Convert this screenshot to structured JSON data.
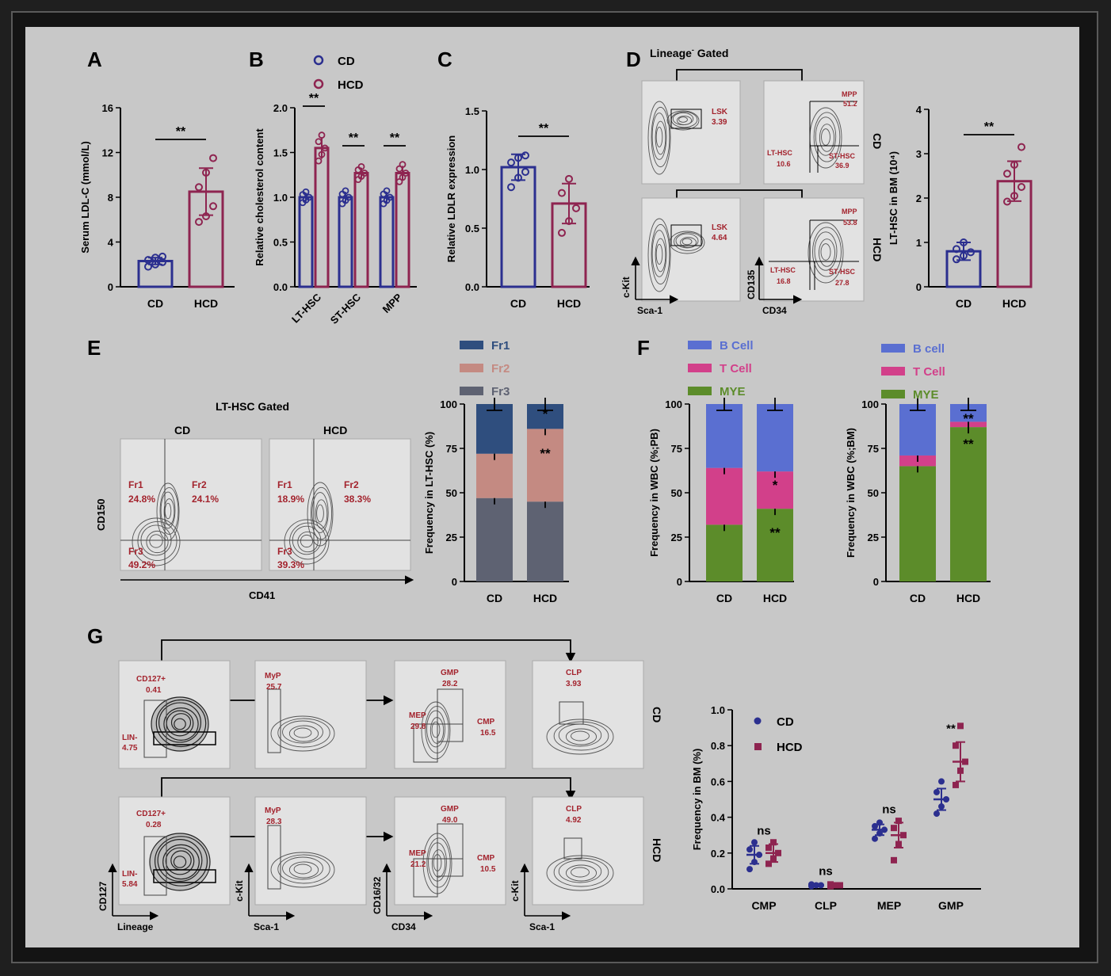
{
  "panels": {
    "A": "A",
    "B": "B",
    "C": "C",
    "D": "D",
    "E": "E",
    "F": "F",
    "G": "G"
  },
  "colors": {
    "cd": "#2b2f8f",
    "hcd": "#8e2450",
    "fr1": "#2f4e7e",
    "fr2": "#c48a82",
    "fr3": "#5e6272",
    "mye": "#5c8c2a",
    "tcell": "#d2408a",
    "bcell": "#5a6fd1",
    "gate": "#a3232d"
  },
  "chart_data": [
    {
      "id": "A",
      "type": "bar",
      "categories": [
        "CD",
        "HCD"
      ],
      "values": [
        2.3,
        8.5
      ],
      "errors": [
        0.3,
        2.1
      ],
      "points": [
        [
          1.8,
          2.0,
          2.2,
          2.4,
          2.6,
          2.7
        ],
        [
          5.8,
          6.3,
          7.2,
          8.9,
          10.2,
          11.5
        ]
      ],
      "ylabel": "Serum LDL-C (mmol/L)",
      "ylim": [
        0,
        16
      ],
      "yticks": [
        "0",
        "4",
        "8",
        "12",
        "16"
      ],
      "sig": "**"
    },
    {
      "id": "B",
      "type": "bar",
      "categories": [
        "LT-HSC",
        "ST-HSC",
        "MPP"
      ],
      "series": [
        {
          "name": "CD",
          "values": [
            1.0,
            1.0,
            1.0
          ],
          "errors": [
            0.05,
            0.06,
            0.06
          ]
        },
        {
          "name": "HCD",
          "values": [
            1.55,
            1.27,
            1.27
          ],
          "errors": [
            0.12,
            0.06,
            0.08
          ]
        }
      ],
      "ylabel": "Relative cholesterol content",
      "ylim": [
        0,
        2.0
      ],
      "yticks": [
        "0.0",
        "0.5",
        "1.0",
        "1.5",
        "2.0"
      ],
      "sig": [
        "**",
        "**",
        "**"
      ]
    },
    {
      "id": "C",
      "type": "bar",
      "categories": [
        "CD",
        "HCD"
      ],
      "values": [
        1.02,
        0.71
      ],
      "errors": [
        0.11,
        0.17
      ],
      "points": [
        [
          0.85,
          0.93,
          0.98,
          1.06,
          1.1,
          1.12
        ],
        [
          0.46,
          0.56,
          0.67,
          0.8,
          0.92
        ]
      ],
      "ylabel": "Relative LDLR expression",
      "ylim": [
        0,
        1.5
      ],
      "yticks": [
        "0.0",
        "0.5",
        "1.0",
        "1.5"
      ],
      "sig": "**"
    },
    {
      "id": "D",
      "type": "bar",
      "categories": [
        "CD",
        "HCD"
      ],
      "values": [
        0.8,
        2.38
      ],
      "errors": [
        0.2,
        0.45
      ],
      "points": [
        [
          0.62,
          0.7,
          0.78,
          0.85,
          1.0
        ],
        [
          1.92,
          2.05,
          2.25,
          2.55,
          2.75,
          3.15
        ]
      ],
      "ylabel": "LT-HSC in BM (10⁴)",
      "ylim": [
        0,
        4
      ],
      "yticks": [
        "0",
        "1",
        "2",
        "3",
        "4"
      ],
      "sig": "**"
    },
    {
      "id": "E",
      "type": "stacked_bar",
      "categories": [
        "CD",
        "HCD"
      ],
      "series": [
        {
          "name": "Fr3",
          "values": [
            47,
            45
          ]
        },
        {
          "name": "Fr2",
          "values": [
            25,
            41
          ]
        },
        {
          "name": "Fr1",
          "values": [
            28,
            14
          ]
        }
      ],
      "ylabel": "Frequency in LT-HSC (%)",
      "ylim": [
        0,
        100
      ],
      "yticks": [
        "0",
        "25",
        "50",
        "75",
        "100"
      ],
      "annotations": [
        "*",
        "**"
      ]
    },
    {
      "id": "F1",
      "type": "stacked_bar",
      "categories": [
        "CD",
        "HCD"
      ],
      "series": [
        {
          "name": "MYE",
          "values": [
            32,
            41
          ]
        },
        {
          "name": "T Cell",
          "values": [
            32,
            21
          ]
        },
        {
          "name": "B Cell",
          "values": [
            36,
            38
          ]
        }
      ],
      "ylabel": "Frequency in WBC (%;PB)",
      "ylim": [
        0,
        100
      ],
      "yticks": [
        "0",
        "25",
        "50",
        "75",
        "100"
      ],
      "annotations": [
        "*",
        "**"
      ]
    },
    {
      "id": "F2",
      "type": "stacked_bar",
      "categories": [
        "CD",
        "HCD"
      ],
      "series": [
        {
          "name": "MYE",
          "values": [
            65,
            87
          ]
        },
        {
          "name": "T Cell",
          "values": [
            6,
            3
          ]
        },
        {
          "name": "B cell",
          "values": [
            29,
            10
          ]
        }
      ],
      "ylabel": "Frequency in WBC (%;BM)",
      "ylim": [
        0,
        100
      ],
      "yticks": [
        "0",
        "25",
        "50",
        "75",
        "100"
      ],
      "annotations": [
        "**",
        "**"
      ]
    },
    {
      "id": "G",
      "type": "scatter",
      "categories": [
        "CMP",
        "CLP",
        "MEP",
        "GMP"
      ],
      "series": [
        {
          "name": "CD",
          "means": [
            0.19,
            0.02,
            0.33,
            0.5
          ],
          "errors": [
            0.05,
            0.005,
            0.03,
            0.06
          ],
          "points": [
            [
              0.11,
              0.15,
              0.19,
              0.22,
              0.26
            ],
            [
              0.015,
              0.02,
              0.02,
              0.025
            ],
            [
              0.28,
              0.31,
              0.33,
              0.35,
              0.37
            ],
            [
              0.42,
              0.46,
              0.5,
              0.54,
              0.6
            ]
          ]
        },
        {
          "name": "HCD",
          "means": [
            0.2,
            0.02,
            0.3,
            0.71
          ],
          "errors": [
            0.05,
            0.005,
            0.07,
            0.11
          ],
          "points": [
            [
              0.14,
              0.17,
              0.2,
              0.23,
              0.26
            ],
            [
              0.015,
              0.02,
              0.02,
              0.025
            ],
            [
              0.16,
              0.25,
              0.3,
              0.34,
              0.38
            ],
            [
              0.58,
              0.66,
              0.71,
              0.8,
              0.91
            ]
          ]
        }
      ],
      "ylabel": "Frequency in BM (%)",
      "ylim": [
        0,
        1.0
      ],
      "yticks": [
        "0.0",
        "0.2",
        "0.4",
        "0.6",
        "0.8",
        "1.0"
      ],
      "sig": [
        "ns",
        "ns",
        "ns",
        "**"
      ]
    }
  ],
  "flow": {
    "D": {
      "title": "Lineage",
      "title_sup": "-",
      "title_rest": " Gated",
      "rows": [
        "CD",
        "HCD"
      ],
      "cd": {
        "lsk": "LSK",
        "lsk_val": "3.39",
        "mpp": "MPP",
        "mpp_val": "51.2",
        "lt": "LT-HSC",
        "lt_val": "10.6",
        "st": "ST-HSC",
        "st_val": "36.9"
      },
      "hcd": {
        "lsk": "LSK",
        "lsk_val": "4.64",
        "mpp": "MPP",
        "mpp_val": "53.8",
        "lt": "LT-HSC",
        "lt_val": "16.8",
        "st": "ST-HSC",
        "st_val": "27.8"
      },
      "axes": {
        "x1": "Sca-1",
        "y1": "c-Kit",
        "x2": "CD34",
        "y2": "CD135"
      }
    },
    "E": {
      "title": "LT-HSC Gated",
      "cd": "CD",
      "hcd": "HCD",
      "xlabel": "CD41",
      "ylabel": "CD150",
      "cd_vals": {
        "fr1": "Fr1",
        "fr1_val": "24.8%",
        "fr2": "Fr2",
        "fr2_val": "24.1%",
        "fr3": "Fr3",
        "fr3_val": "49.2%"
      },
      "hcd_vals": {
        "fr1": "Fr1",
        "fr1_val": "18.9%",
        "fr2": "Fr2",
        "fr2_val": "38.3%",
        "fr3": "Fr3",
        "fr3_val": "39.3%"
      }
    },
    "G": {
      "rows": [
        "CD",
        "HCD"
      ],
      "cd": {
        "cd127": "CD127+",
        "cd127_val": "0.41",
        "lin": "LIN-",
        "lin_val": "4.75",
        "myp": "MyP",
        "myp_val": "25.7",
        "gmp": "GMP",
        "gmp_val": "28.2",
        "mep": "MEP",
        "mep_val": "29.8",
        "cmp": "CMP",
        "cmp_val": "16.5",
        "clp": "CLP",
        "clp_val": "3.93"
      },
      "hcd": {
        "cd127": "CD127+",
        "cd127_val": "0.28",
        "lin": "LIN-",
        "lin_val": "5.84",
        "myp": "MyP",
        "myp_val": "28.3",
        "gmp": "GMP",
        "gmp_val": "49.0",
        "mep": "MEP",
        "mep_val": "21.2",
        "cmp": "CMP",
        "cmp_val": "10.5",
        "clp": "CLP",
        "clp_val": "4.92"
      },
      "axes": {
        "lineage": "Lineage",
        "cd127": "CD127",
        "ckit": "c-Kit",
        "sca1": "Sca-1",
        "cd1632": "CD16/32",
        "cd34": "CD34"
      }
    }
  }
}
